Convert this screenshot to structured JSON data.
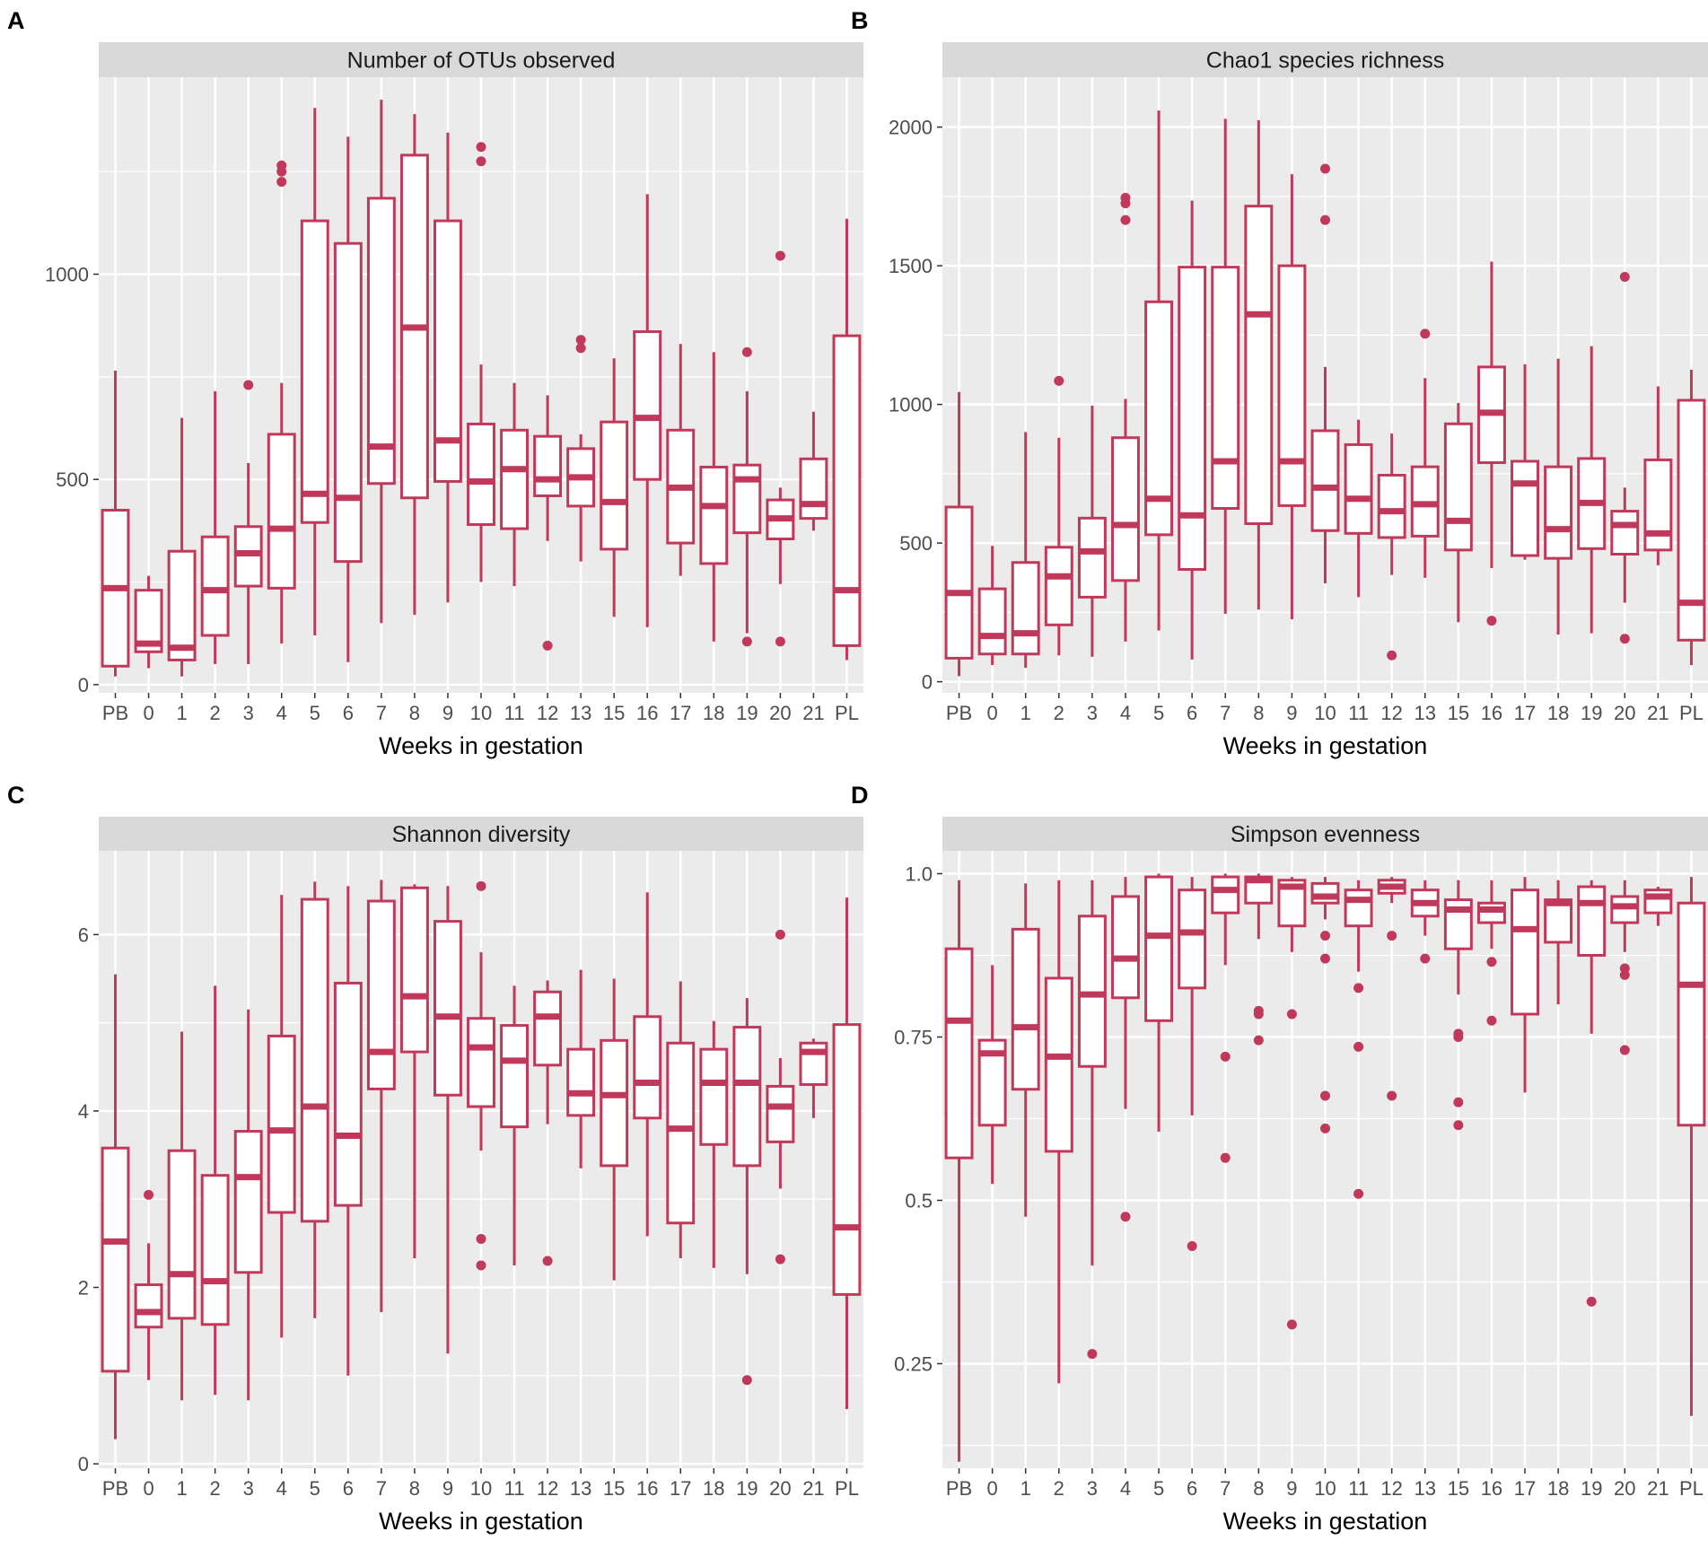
{
  "colors": {
    "box": "#C0395A",
    "panel_bg": "#EBEBEB",
    "strip_bg": "#D9D9D9",
    "grid": "#FFFFFF"
  },
  "chart_data": [
    {
      "type": "box",
      "letter": "A",
      "title": "Number of OTUs observed",
      "xlabel": "Weeks in gestation",
      "ylabel": "",
      "ylim": [
        -20,
        1480
      ],
      "yticks": [
        0,
        500,
        1000
      ],
      "ytick_labels": [
        "0",
        "500",
        "1000"
      ],
      "categories": [
        "PB",
        "0",
        "1",
        "2",
        "3",
        "4",
        "5",
        "6",
        "7",
        "8",
        "9",
        "10",
        "11",
        "12",
        "13",
        "15",
        "16",
        "17",
        "18",
        "19",
        "20",
        "21",
        "PL"
      ],
      "boxes": [
        {
          "lo": 20,
          "q1": 45,
          "med": 235,
          "q3": 425,
          "hi": 765,
          "out": []
        },
        {
          "lo": 40,
          "q1": 80,
          "med": 100,
          "q3": 230,
          "hi": 265,
          "out": []
        },
        {
          "lo": 20,
          "q1": 60,
          "med": 90,
          "q3": 325,
          "hi": 650,
          "out": []
        },
        {
          "lo": 50,
          "q1": 120,
          "med": 230,
          "q3": 360,
          "hi": 715,
          "out": []
        },
        {
          "lo": 50,
          "q1": 240,
          "med": 320,
          "q3": 385,
          "hi": 540,
          "out": [
            730
          ]
        },
        {
          "lo": 100,
          "q1": 235,
          "med": 380,
          "q3": 610,
          "hi": 735,
          "out": [
            1225,
            1250,
            1265
          ]
        },
        {
          "lo": 120,
          "q1": 395,
          "med": 465,
          "q3": 1130,
          "hi": 1405,
          "out": []
        },
        {
          "lo": 55,
          "q1": 300,
          "med": 455,
          "q3": 1075,
          "hi": 1335,
          "out": []
        },
        {
          "lo": 150,
          "q1": 490,
          "med": 580,
          "q3": 1185,
          "hi": 1425,
          "out": []
        },
        {
          "lo": 170,
          "q1": 455,
          "med": 870,
          "q3": 1290,
          "hi": 1390,
          "out": []
        },
        {
          "lo": 200,
          "q1": 495,
          "med": 595,
          "q3": 1130,
          "hi": 1345,
          "out": []
        },
        {
          "lo": 250,
          "q1": 390,
          "med": 495,
          "q3": 635,
          "hi": 780,
          "out": [
            1275,
            1310
          ]
        },
        {
          "lo": 240,
          "q1": 380,
          "med": 525,
          "q3": 620,
          "hi": 735,
          "out": []
        },
        {
          "lo": 350,
          "q1": 460,
          "med": 500,
          "q3": 605,
          "hi": 705,
          "out": [
            95
          ]
        },
        {
          "lo": 300,
          "q1": 435,
          "med": 505,
          "q3": 575,
          "hi": 610,
          "out": [
            820,
            840
          ]
        },
        {
          "lo": 165,
          "q1": 330,
          "med": 445,
          "q3": 640,
          "hi": 795,
          "out": []
        },
        {
          "lo": 140,
          "q1": 500,
          "med": 650,
          "q3": 860,
          "hi": 1195,
          "out": []
        },
        {
          "lo": 265,
          "q1": 345,
          "med": 480,
          "q3": 620,
          "hi": 830,
          "out": []
        },
        {
          "lo": 105,
          "q1": 295,
          "med": 435,
          "q3": 530,
          "hi": 810,
          "out": []
        },
        {
          "lo": 125,
          "q1": 370,
          "med": 500,
          "q3": 535,
          "hi": 715,
          "out": [
            105,
            810
          ]
        },
        {
          "lo": 245,
          "q1": 355,
          "med": 405,
          "q3": 450,
          "hi": 480,
          "out": [
            105,
            1045
          ]
        },
        {
          "lo": 375,
          "q1": 405,
          "med": 440,
          "q3": 550,
          "hi": 665,
          "out": []
        },
        {
          "lo": 60,
          "q1": 95,
          "med": 230,
          "q3": 850,
          "hi": 1135,
          "out": []
        }
      ]
    },
    {
      "type": "box",
      "letter": "B",
      "title": "Chao1 species richness",
      "xlabel": "Weeks in gestation",
      "ylabel": "",
      "ylim": [
        -40,
        2180
      ],
      "yticks": [
        0,
        500,
        1000,
        1500,
        2000
      ],
      "ytick_labels": [
        "0",
        "500",
        "1000",
        "1500",
        "2000"
      ],
      "categories": [
        "PB",
        "0",
        "1",
        "2",
        "3",
        "4",
        "5",
        "6",
        "7",
        "8",
        "9",
        "10",
        "11",
        "12",
        "13",
        "15",
        "16",
        "17",
        "18",
        "19",
        "20",
        "21",
        "PL"
      ],
      "boxes": [
        {
          "lo": 20,
          "q1": 85,
          "med": 320,
          "q3": 630,
          "hi": 1045,
          "out": []
        },
        {
          "lo": 60,
          "q1": 100,
          "med": 165,
          "q3": 335,
          "hi": 490,
          "out": []
        },
        {
          "lo": 50,
          "q1": 100,
          "med": 175,
          "q3": 430,
          "hi": 900,
          "out": []
        },
        {
          "lo": 95,
          "q1": 205,
          "med": 380,
          "q3": 485,
          "hi": 880,
          "out": [
            1085
          ]
        },
        {
          "lo": 90,
          "q1": 305,
          "med": 470,
          "q3": 590,
          "hi": 995,
          "out": []
        },
        {
          "lo": 145,
          "q1": 365,
          "med": 565,
          "q3": 880,
          "hi": 1020,
          "out": [
            1665,
            1725,
            1745
          ]
        },
        {
          "lo": 185,
          "q1": 530,
          "med": 660,
          "q3": 1370,
          "hi": 2060,
          "out": []
        },
        {
          "lo": 80,
          "q1": 405,
          "med": 600,
          "q3": 1495,
          "hi": 1735,
          "out": []
        },
        {
          "lo": 245,
          "q1": 625,
          "med": 795,
          "q3": 1495,
          "hi": 2030,
          "out": []
        },
        {
          "lo": 260,
          "q1": 570,
          "med": 1325,
          "q3": 1715,
          "hi": 2025,
          "out": []
        },
        {
          "lo": 225,
          "q1": 635,
          "med": 795,
          "q3": 1500,
          "hi": 1830,
          "out": []
        },
        {
          "lo": 355,
          "q1": 545,
          "med": 700,
          "q3": 905,
          "hi": 1135,
          "out": [
            1665,
            1850
          ]
        },
        {
          "lo": 305,
          "q1": 535,
          "med": 660,
          "q3": 855,
          "hi": 945,
          "out": []
        },
        {
          "lo": 385,
          "q1": 520,
          "med": 615,
          "q3": 745,
          "hi": 895,
          "out": [
            95
          ]
        },
        {
          "lo": 375,
          "q1": 525,
          "med": 640,
          "q3": 775,
          "hi": 1095,
          "out": [
            1255
          ]
        },
        {
          "lo": 215,
          "q1": 475,
          "med": 580,
          "q3": 930,
          "hi": 1005,
          "out": []
        },
        {
          "lo": 410,
          "q1": 790,
          "med": 970,
          "q3": 1135,
          "hi": 1515,
          "out": [
            220
          ]
        },
        {
          "lo": 440,
          "q1": 455,
          "med": 715,
          "q3": 795,
          "hi": 1145,
          "out": []
        },
        {
          "lo": 170,
          "q1": 445,
          "med": 550,
          "q3": 775,
          "hi": 1165,
          "out": []
        },
        {
          "lo": 175,
          "q1": 480,
          "med": 645,
          "q3": 805,
          "hi": 1210,
          "out": []
        },
        {
          "lo": 285,
          "q1": 460,
          "med": 565,
          "q3": 615,
          "hi": 700,
          "out": [
            155,
            1460
          ]
        },
        {
          "lo": 420,
          "q1": 475,
          "med": 535,
          "q3": 800,
          "hi": 1065,
          "out": []
        },
        {
          "lo": 60,
          "q1": 150,
          "med": 285,
          "q3": 1015,
          "hi": 1125,
          "out": []
        }
      ]
    },
    {
      "type": "box",
      "letter": "C",
      "title": "Shannon diversity",
      "xlabel": "Weeks in gestation",
      "ylabel": "",
      "ylim": [
        -0.05,
        6.95
      ],
      "yticks": [
        0,
        2,
        4,
        6
      ],
      "ytick_labels": [
        "0",
        "2",
        "4",
        "6"
      ],
      "categories": [
        "PB",
        "0",
        "1",
        "2",
        "3",
        "4",
        "5",
        "6",
        "7",
        "8",
        "9",
        "10",
        "11",
        "12",
        "13",
        "15",
        "16",
        "17",
        "18",
        "19",
        "20",
        "21",
        "PL"
      ],
      "boxes": [
        {
          "lo": 0.28,
          "q1": 1.05,
          "med": 2.52,
          "q3": 3.58,
          "hi": 5.55,
          "out": []
        },
        {
          "lo": 0.95,
          "q1": 1.55,
          "med": 1.72,
          "q3": 2.03,
          "hi": 2.5,
          "out": [
            3.05
          ]
        },
        {
          "lo": 0.72,
          "q1": 1.65,
          "med": 2.15,
          "q3": 3.55,
          "hi": 4.9,
          "out": []
        },
        {
          "lo": 0.78,
          "q1": 1.58,
          "med": 2.07,
          "q3": 3.27,
          "hi": 5.42,
          "out": []
        },
        {
          "lo": 0.72,
          "q1": 2.17,
          "med": 3.25,
          "q3": 3.77,
          "hi": 5.15,
          "out": []
        },
        {
          "lo": 1.43,
          "q1": 2.85,
          "med": 3.78,
          "q3": 4.85,
          "hi": 6.45,
          "out": []
        },
        {
          "lo": 1.65,
          "q1": 2.75,
          "med": 4.05,
          "q3": 6.4,
          "hi": 6.6,
          "out": []
        },
        {
          "lo": 1.0,
          "q1": 2.93,
          "med": 3.72,
          "q3": 5.45,
          "hi": 6.55,
          "out": []
        },
        {
          "lo": 1.72,
          "q1": 4.25,
          "med": 4.67,
          "q3": 6.38,
          "hi": 6.62,
          "out": []
        },
        {
          "lo": 2.33,
          "q1": 4.67,
          "med": 5.3,
          "q3": 6.53,
          "hi": 6.57,
          "out": []
        },
        {
          "lo": 1.25,
          "q1": 4.18,
          "med": 5.07,
          "q3": 6.15,
          "hi": 6.55,
          "out": []
        },
        {
          "lo": 3.55,
          "q1": 4.05,
          "med": 4.72,
          "q3": 5.05,
          "hi": 5.8,
          "out": [
            2.25,
            2.55,
            6.55
          ]
        },
        {
          "lo": 2.25,
          "q1": 3.82,
          "med": 4.57,
          "q3": 4.97,
          "hi": 5.42,
          "out": []
        },
        {
          "lo": 3.85,
          "q1": 4.52,
          "med": 5.07,
          "q3": 5.35,
          "hi": 5.48,
          "out": [
            2.3
          ]
        },
        {
          "lo": 3.35,
          "q1": 3.95,
          "med": 4.2,
          "q3": 4.7,
          "hi": 5.6,
          "out": []
        },
        {
          "lo": 2.08,
          "q1": 3.38,
          "med": 4.18,
          "q3": 4.8,
          "hi": 5.5,
          "out": []
        },
        {
          "lo": 2.58,
          "q1": 3.92,
          "med": 4.32,
          "q3": 5.07,
          "hi": 6.48,
          "out": []
        },
        {
          "lo": 2.33,
          "q1": 2.73,
          "med": 3.8,
          "q3": 4.77,
          "hi": 5.47,
          "out": []
        },
        {
          "lo": 2.22,
          "q1": 3.62,
          "med": 4.32,
          "q3": 4.7,
          "hi": 5.02,
          "out": []
        },
        {
          "lo": 2.15,
          "q1": 3.38,
          "med": 4.32,
          "q3": 4.95,
          "hi": 5.28,
          "out": [
            0.95
          ]
        },
        {
          "lo": 3.12,
          "q1": 3.65,
          "med": 4.05,
          "q3": 4.28,
          "hi": 4.6,
          "out": [
            2.32,
            6.0
          ]
        },
        {
          "lo": 3.92,
          "q1": 4.3,
          "med": 4.67,
          "q3": 4.77,
          "hi": 4.82,
          "out": []
        },
        {
          "lo": 0.62,
          "q1": 1.92,
          "med": 2.68,
          "q3": 4.98,
          "hi": 6.42,
          "out": []
        }
      ]
    },
    {
      "type": "box",
      "letter": "D",
      "title": "Simpson evenness",
      "xlabel": "Weeks in gestation",
      "ylabel": "",
      "ylim": [
        0.09,
        1.035
      ],
      "yticks": [
        0.25,
        0.5,
        0.75,
        1.0
      ],
      "ytick_labels": [
        "0.25",
        "0.5",
        "0.75",
        "1.0"
      ],
      "categories": [
        "PB",
        "0",
        "1",
        "2",
        "3",
        "4",
        "5",
        "6",
        "7",
        "8",
        "9",
        "10",
        "11",
        "12",
        "13",
        "15",
        "16",
        "17",
        "18",
        "19",
        "20",
        "21",
        "PL"
      ],
      "boxes": [
        {
          "lo": 0.1,
          "q1": 0.565,
          "med": 0.775,
          "q3": 0.885,
          "hi": 0.99,
          "out": []
        },
        {
          "lo": 0.525,
          "q1": 0.615,
          "med": 0.725,
          "q3": 0.745,
          "hi": 0.86,
          "out": []
        },
        {
          "lo": 0.475,
          "q1": 0.67,
          "med": 0.765,
          "q3": 0.915,
          "hi": 0.985,
          "out": []
        },
        {
          "lo": 0.22,
          "q1": 0.575,
          "med": 0.72,
          "q3": 0.84,
          "hi": 0.99,
          "out": []
        },
        {
          "lo": 0.4,
          "q1": 0.705,
          "med": 0.815,
          "q3": 0.935,
          "hi": 0.99,
          "out": [
            0.265
          ]
        },
        {
          "lo": 0.64,
          "q1": 0.81,
          "med": 0.87,
          "q3": 0.965,
          "hi": 0.995,
          "out": [
            0.475
          ]
        },
        {
          "lo": 0.605,
          "q1": 0.775,
          "med": 0.905,
          "q3": 0.995,
          "hi": 1.0,
          "out": []
        },
        {
          "lo": 0.63,
          "q1": 0.825,
          "med": 0.91,
          "q3": 0.975,
          "hi": 0.995,
          "out": [
            0.43
          ]
        },
        {
          "lo": 0.86,
          "q1": 0.94,
          "med": 0.975,
          "q3": 0.995,
          "hi": 1.0,
          "out": [
            0.565,
            0.72
          ]
        },
        {
          "lo": 0.9,
          "q1": 0.955,
          "med": 0.99,
          "q3": 0.995,
          "hi": 1.0,
          "out": [
            0.745,
            0.785,
            0.79
          ]
        },
        {
          "lo": 0.88,
          "q1": 0.92,
          "med": 0.98,
          "q3": 0.99,
          "hi": 0.995,
          "out": [
            0.31,
            0.785
          ]
        },
        {
          "lo": 0.93,
          "q1": 0.955,
          "med": 0.965,
          "q3": 0.985,
          "hi": 0.995,
          "out": [
            0.61,
            0.66,
            0.87,
            0.905
          ]
        },
        {
          "lo": 0.85,
          "q1": 0.92,
          "med": 0.96,
          "q3": 0.975,
          "hi": 0.99,
          "out": [
            0.51,
            0.735,
            0.825
          ]
        },
        {
          "lo": 0.955,
          "q1": 0.97,
          "med": 0.98,
          "q3": 0.99,
          "hi": 0.995,
          "out": [
            0.66,
            0.905
          ]
        },
        {
          "lo": 0.905,
          "q1": 0.935,
          "med": 0.955,
          "q3": 0.975,
          "hi": 0.99,
          "out": [
            0.87
          ]
        },
        {
          "lo": 0.815,
          "q1": 0.885,
          "med": 0.945,
          "q3": 0.96,
          "hi": 0.99,
          "out": [
            0.615,
            0.65,
            0.75,
            0.755
          ]
        },
        {
          "lo": 0.885,
          "q1": 0.925,
          "med": 0.945,
          "q3": 0.955,
          "hi": 0.99,
          "out": [
            0.775,
            0.865
          ]
        },
        {
          "lo": 0.665,
          "q1": 0.785,
          "med": 0.915,
          "q3": 0.975,
          "hi": 0.995,
          "out": []
        },
        {
          "lo": 0.8,
          "q1": 0.895,
          "med": 0.955,
          "q3": 0.96,
          "hi": 0.99,
          "out": []
        },
        {
          "lo": 0.755,
          "q1": 0.875,
          "med": 0.955,
          "q3": 0.98,
          "hi": 0.99,
          "out": [
            0.345
          ]
        },
        {
          "lo": 0.88,
          "q1": 0.925,
          "med": 0.95,
          "q3": 0.965,
          "hi": 0.99,
          "out": [
            0.73,
            0.845,
            0.855
          ]
        },
        {
          "lo": 0.92,
          "q1": 0.94,
          "med": 0.965,
          "q3": 0.975,
          "hi": 0.98,
          "out": []
        },
        {
          "lo": 0.17,
          "q1": 0.615,
          "med": 0.83,
          "q3": 0.955,
          "hi": 0.995,
          "out": []
        }
      ]
    }
  ]
}
